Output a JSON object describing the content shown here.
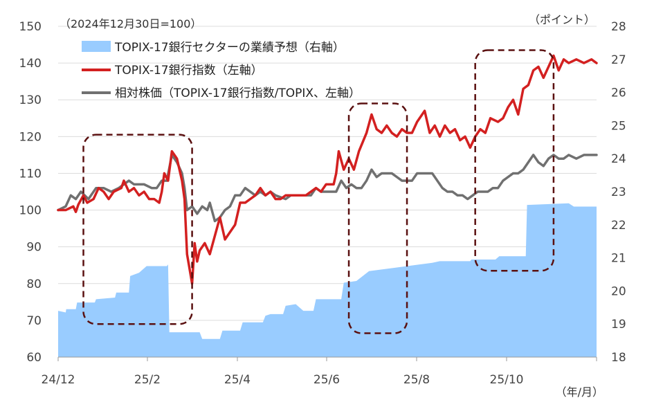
{
  "chart_data": {
    "type": "line",
    "note_base": "（2024年12月30日=100）",
    "note_right_unit": "（ポイント）",
    "note_x_unit": "（年/月）",
    "x_tick_labels": [
      "24/12",
      "25/2",
      "25/4",
      "25/6",
      "25/8",
      "25/10"
    ],
    "y_left": {
      "lim": [
        60,
        150
      ],
      "ticks": [
        150,
        140,
        130,
        120,
        110,
        100,
        90,
        80,
        70,
        60
      ]
    },
    "y_right": {
      "lim": [
        18,
        28
      ],
      "ticks": [
        28,
        27,
        26,
        25,
        24,
        23,
        22,
        21,
        20,
        19,
        18
      ]
    },
    "grid": "horizontal",
    "legend_position": "top-left",
    "series": [
      {
        "name": "TOPIX-17銀行セクターの業績予想（右軸）",
        "kind": "area",
        "axis": "right",
        "color": "#99CCFF",
        "points": [
          [
            0,
            19.4
          ],
          [
            0.3,
            19.35
          ],
          [
            0.32,
            19.45
          ],
          [
            0.7,
            19.45
          ],
          [
            0.75,
            19.65
          ],
          [
            1.45,
            19.65
          ],
          [
            1.5,
            19.75
          ],
          [
            2.25,
            19.8
          ],
          [
            2.3,
            19.95
          ],
          [
            2.8,
            19.95
          ],
          [
            2.85,
            20.45
          ],
          [
            3.2,
            20.55
          ],
          [
            3.5,
            20.75
          ],
          [
            4.3,
            20.75
          ],
          [
            4.35,
            20.8
          ],
          [
            4.4,
            18.75
          ],
          [
            5.6,
            18.75
          ],
          [
            5.7,
            18.55
          ],
          [
            6.4,
            18.55
          ],
          [
            6.5,
            18.8
          ],
          [
            7.2,
            18.8
          ],
          [
            7.3,
            19.05
          ],
          [
            8.1,
            19.05
          ],
          [
            8.2,
            19.25
          ],
          [
            8.4,
            19.3
          ],
          [
            8.9,
            19.3
          ],
          [
            9.0,
            19.55
          ],
          [
            9.4,
            19.6
          ],
          [
            9.7,
            19.4
          ],
          [
            10.1,
            19.4
          ],
          [
            10.2,
            19.75
          ],
          [
            11.2,
            19.75
          ],
          [
            11.3,
            20.25
          ],
          [
            11.8,
            20.3
          ],
          [
            12.3,
            20.6
          ],
          [
            12.8,
            20.65
          ],
          [
            13.3,
            20.7
          ],
          [
            14.3,
            20.8
          ],
          [
            14.8,
            20.85
          ],
          [
            15.1,
            20.9
          ],
          [
            16.3,
            20.9
          ],
          [
            16.35,
            20.95
          ],
          [
            17.3,
            20.95
          ],
          [
            17.45,
            21.05
          ],
          [
            18.5,
            21.05
          ],
          [
            18.55,
            22.6
          ],
          [
            20.2,
            22.65
          ],
          [
            20.4,
            22.55
          ],
          [
            21.3,
            22.55
          ]
        ]
      },
      {
        "name": "TOPIX-17銀行指数（左軸）",
        "kind": "line",
        "axis": "left",
        "color": "#D32020",
        "points": [
          [
            0,
            100
          ],
          [
            0.3,
            100
          ],
          [
            0.6,
            101
          ],
          [
            0.7,
            99.5
          ],
          [
            0.8,
            101.5
          ],
          [
            1.0,
            104
          ],
          [
            1.15,
            102
          ],
          [
            1.4,
            103
          ],
          [
            1.6,
            106
          ],
          [
            1.8,
            105
          ],
          [
            2.0,
            103
          ],
          [
            2.2,
            105
          ],
          [
            2.5,
            106
          ],
          [
            2.6,
            108
          ],
          [
            2.8,
            105
          ],
          [
            3.0,
            106
          ],
          [
            3.2,
            104
          ],
          [
            3.4,
            105
          ],
          [
            3.6,
            103
          ],
          [
            3.8,
            103
          ],
          [
            4.0,
            102
          ],
          [
            4.1,
            105
          ],
          [
            4.2,
            110
          ],
          [
            4.35,
            108
          ],
          [
            4.5,
            116
          ],
          [
            4.7,
            114
          ],
          [
            4.9,
            108
          ],
          [
            5.0,
            103
          ],
          [
            5.1,
            88
          ],
          [
            5.3,
            80
          ],
          [
            5.4,
            91
          ],
          [
            5.5,
            86
          ],
          [
            5.6,
            89
          ],
          [
            5.8,
            91
          ],
          [
            6.0,
            88
          ],
          [
            6.2,
            93
          ],
          [
            6.4,
            98
          ],
          [
            6.6,
            92
          ],
          [
            6.8,
            94
          ],
          [
            7.0,
            96
          ],
          [
            7.2,
            102
          ],
          [
            7.4,
            102
          ],
          [
            7.6,
            103
          ],
          [
            7.8,
            104
          ],
          [
            8.0,
            106
          ],
          [
            8.2,
            104
          ],
          [
            8.4,
            105
          ],
          [
            8.6,
            103
          ],
          [
            8.8,
            103
          ],
          [
            9.0,
            104
          ],
          [
            9.4,
            104
          ],
          [
            9.8,
            104
          ],
          [
            10.2,
            106
          ],
          [
            10.4,
            105
          ],
          [
            10.6,
            107
          ],
          [
            10.9,
            107
          ],
          [
            11.0,
            110
          ],
          [
            11.1,
            116
          ],
          [
            11.3,
            111
          ],
          [
            11.5,
            114
          ],
          [
            11.7,
            111
          ],
          [
            11.9,
            116
          ],
          [
            12.2,
            121
          ],
          [
            12.4,
            126
          ],
          [
            12.6,
            122
          ],
          [
            12.8,
            121
          ],
          [
            13.0,
            123
          ],
          [
            13.2,
            121
          ],
          [
            13.4,
            120
          ],
          [
            13.6,
            122
          ],
          [
            13.8,
            121
          ],
          [
            14.0,
            121
          ],
          [
            14.2,
            124
          ],
          [
            14.5,
            127
          ],
          [
            14.7,
            121
          ],
          [
            14.9,
            123
          ],
          [
            15.1,
            120
          ],
          [
            15.3,
            123
          ],
          [
            15.5,
            121
          ],
          [
            15.7,
            122
          ],
          [
            15.9,
            119
          ],
          [
            16.1,
            120
          ],
          [
            16.3,
            117
          ],
          [
            16.5,
            120
          ],
          [
            16.7,
            122
          ],
          [
            16.9,
            121
          ],
          [
            17.1,
            125
          ],
          [
            17.4,
            124
          ],
          [
            17.6,
            125
          ],
          [
            17.8,
            128
          ],
          [
            18.0,
            130
          ],
          [
            18.2,
            126
          ],
          [
            18.4,
            133
          ],
          [
            18.6,
            134
          ],
          [
            18.8,
            138
          ],
          [
            19.0,
            139
          ],
          [
            19.2,
            136
          ],
          [
            19.4,
            139
          ],
          [
            19.6,
            142
          ],
          [
            19.8,
            138
          ],
          [
            20.0,
            141
          ],
          [
            20.2,
            140
          ],
          [
            20.5,
            141
          ],
          [
            20.8,
            140
          ],
          [
            21.1,
            141
          ],
          [
            21.3,
            140
          ]
        ]
      },
      {
        "name": "相対株価（TOPIX-17銀行指数/TOPIX、左軸）",
        "kind": "line",
        "axis": "left",
        "color": "#707070",
        "points": [
          [
            0,
            100
          ],
          [
            0.3,
            101
          ],
          [
            0.5,
            104
          ],
          [
            0.7,
            103
          ],
          [
            0.9,
            105
          ],
          [
            1.2,
            103
          ],
          [
            1.5,
            106
          ],
          [
            1.8,
            106
          ],
          [
            2.1,
            105
          ],
          [
            2.4,
            106
          ],
          [
            2.8,
            108
          ],
          [
            3.0,
            107
          ],
          [
            3.4,
            107
          ],
          [
            3.7,
            106
          ],
          [
            3.9,
            106
          ],
          [
            4.1,
            108
          ],
          [
            4.3,
            108
          ],
          [
            4.5,
            115
          ],
          [
            4.7,
            113
          ],
          [
            4.9,
            110
          ],
          [
            5.0,
            106
          ],
          [
            5.1,
            100
          ],
          [
            5.3,
            101
          ],
          [
            5.5,
            99
          ],
          [
            5.7,
            101
          ],
          [
            5.9,
            100
          ],
          [
            6.0,
            102
          ],
          [
            6.2,
            97
          ],
          [
            6.4,
            98
          ],
          [
            6.6,
            100
          ],
          [
            6.8,
            101
          ],
          [
            7.0,
            104
          ],
          [
            7.2,
            104
          ],
          [
            7.4,
            106
          ],
          [
            7.8,
            104
          ],
          [
            8.0,
            105
          ],
          [
            8.2,
            104
          ],
          [
            8.4,
            105
          ],
          [
            8.6,
            104
          ],
          [
            9.0,
            103
          ],
          [
            9.2,
            104
          ],
          [
            9.6,
            104
          ],
          [
            10.0,
            104
          ],
          [
            10.2,
            106
          ],
          [
            10.4,
            105
          ],
          [
            10.6,
            105
          ],
          [
            11.0,
            105
          ],
          [
            11.2,
            108
          ],
          [
            11.4,
            106
          ],
          [
            11.6,
            107
          ],
          [
            11.8,
            106
          ],
          [
            12.0,
            106
          ],
          [
            12.2,
            108
          ],
          [
            12.4,
            111
          ],
          [
            12.6,
            109
          ],
          [
            12.8,
            110
          ],
          [
            13.0,
            110
          ],
          [
            13.2,
            110
          ],
          [
            13.4,
            109
          ],
          [
            13.6,
            108
          ],
          [
            13.8,
            108
          ],
          [
            14.0,
            108
          ],
          [
            14.2,
            110
          ],
          [
            14.4,
            110
          ],
          [
            14.6,
            110
          ],
          [
            14.8,
            110
          ],
          [
            15.0,
            108
          ],
          [
            15.2,
            106
          ],
          [
            15.4,
            105
          ],
          [
            15.6,
            105
          ],
          [
            15.8,
            104
          ],
          [
            16.0,
            104
          ],
          [
            16.2,
            103
          ],
          [
            16.4,
            104
          ],
          [
            16.6,
            105
          ],
          [
            16.8,
            105
          ],
          [
            17.0,
            105
          ],
          [
            17.2,
            106
          ],
          [
            17.4,
            106
          ],
          [
            17.6,
            108
          ],
          [
            17.8,
            109
          ],
          [
            18.0,
            110
          ],
          [
            18.2,
            110
          ],
          [
            18.4,
            111
          ],
          [
            18.6,
            113
          ],
          [
            18.8,
            115
          ],
          [
            19.0,
            113
          ],
          [
            19.2,
            112
          ],
          [
            19.4,
            114
          ],
          [
            19.6,
            115
          ],
          [
            19.8,
            114
          ],
          [
            20.0,
            114
          ],
          [
            20.2,
            115
          ],
          [
            20.5,
            114
          ],
          [
            20.8,
            115
          ],
          [
            21.1,
            115
          ],
          [
            21.3,
            115
          ]
        ]
      }
    ],
    "highlight_boxes": [
      {
        "from": 1.0,
        "to": 5.3,
        "y_from": 69,
        "y_to": 120.5
      },
      {
        "from": 11.5,
        "to": 13.8,
        "y_from": 66.5,
        "y_to": 129
      },
      {
        "from": 16.5,
        "to": 19.6,
        "y_from": 83.5,
        "y_to": 143.5
      }
    ],
    "x_range": [
      0,
      21.3
    ]
  }
}
